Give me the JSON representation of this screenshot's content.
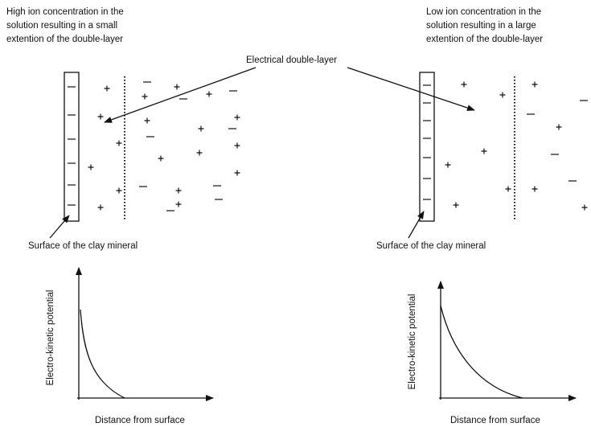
{
  "double_layer_label": "Electrical double-layer",
  "panels": [
    {
      "caption": [
        "High ion concentration in the",
        "solution resulting in a small",
        "extention of the double-layer"
      ],
      "surface_label": "Surface of the clay mineral",
      "plot": {
        "y_label": "Electro-kinetic potential",
        "x_label": "Distance from surface"
      }
    },
    {
      "caption": [
        "Low ion concentration in the",
        "solution resulting in a large",
        "extention of the double-layer"
      ],
      "surface_label": "Surface of the clay mineral",
      "plot": {
        "y_label": "Electro-kinetic potential",
        "x_label": "Distance from surface"
      }
    }
  ]
}
